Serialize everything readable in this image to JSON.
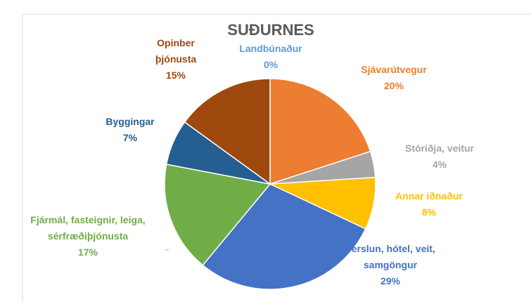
{
  "chart_data": {
    "type": "pie",
    "title": "SUÐURNES",
    "categories": [
      "Landbúnaður",
      "Sjávarútvegur",
      "Stóriðja, veitur",
      "Annar iðnaður",
      "Verslun, hótel, veit, samgöngur",
      "Fjármál, fasteignir, leiga, sérfræðiþjónusta",
      "Byggingar",
      "Opinber þjónusta"
    ],
    "values": [
      0,
      20,
      4,
      8,
      29,
      17,
      7,
      15
    ],
    "value_labels": [
      "0%",
      "20%",
      "4%",
      "8%",
      "29%",
      "17%",
      "7%",
      "15%"
    ],
    "colors": [
      "#5b9bd5",
      "#ed7d31",
      "#a5a5a5",
      "#ffc000",
      "#4472c4",
      "#70ad47",
      "#255e91",
      "#9e480e"
    ]
  }
}
